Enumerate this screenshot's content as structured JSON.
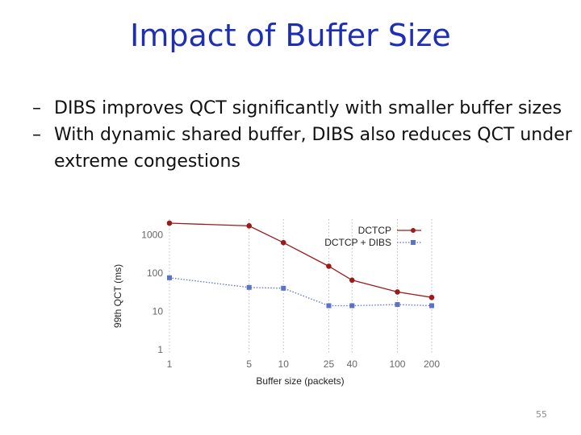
{
  "slide": {
    "title": "Impact of Buffer Size",
    "bullets": [
      {
        "dash": "–",
        "text": "DIBS improves QCT significantly with smaller buffer sizes"
      },
      {
        "dash": "–",
        "text": "With dynamic shared buffer, DIBS also reduces QCT under extreme congestions"
      }
    ],
    "page_number": "55"
  },
  "colors": {
    "title": "#1f2fb3",
    "dctcp": "#9b1b1b",
    "dibs": "#5a72c8",
    "grid": "#bbbbbb"
  },
  "chart_data": {
    "type": "line",
    "title": "",
    "xlabel": "Buffer size (packets)",
    "ylabel": "99th QCT (ms)",
    "x_scale": "categorical-log",
    "y_scale": "log",
    "ylim": [
      1,
      2000
    ],
    "categories": [
      "1",
      "5",
      "10",
      "25",
      "40",
      "100",
      "200"
    ],
    "yticks": [
      1,
      10,
      100,
      1000
    ],
    "ytick_labels": [
      "1",
      "10",
      "100",
      "1000"
    ],
    "grid": "vertical-dotted",
    "legend_position": "top-right",
    "series": [
      {
        "name": "DCTCP",
        "style": "solid",
        "marker": "circle",
        "values": [
          2000,
          1700,
          620,
          150,
          65,
          32,
          23
        ]
      },
      {
        "name": "DCTCP + DIBS",
        "style": "dotted",
        "marker": "square",
        "values": [
          75,
          42,
          40,
          14,
          14,
          15,
          14
        ]
      }
    ]
  }
}
